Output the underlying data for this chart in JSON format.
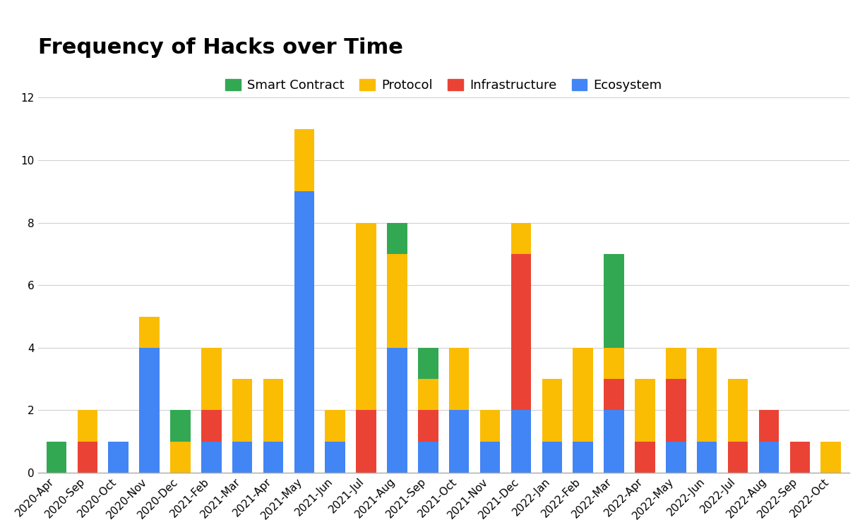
{
  "title": "Frequency of Hacks over Time",
  "categories": [
    "2020-Apr",
    "2020-Sep",
    "2020-Oct",
    "2020-Nov",
    "2020-Dec",
    "2021-Feb",
    "2021-Mar",
    "2021-Apr",
    "2021-May",
    "2021-Jun",
    "2021-Jul",
    "2021-Aug",
    "2021-Sep",
    "2021-Oct",
    "2021-Nov",
    "2021-Dec",
    "2022-Jan",
    "2022-Feb",
    "2022-Mar",
    "2022-Apr",
    "2022-May",
    "2022-Jun",
    "2022-Jul",
    "2022-Aug",
    "2022-Sep",
    "2022-Oct"
  ],
  "smart_contract": [
    1,
    0,
    0,
    0,
    1,
    0,
    0,
    0,
    0,
    0,
    0,
    1,
    1,
    0,
    0,
    0,
    0,
    0,
    3,
    0,
    0,
    0,
    0,
    0,
    0,
    0
  ],
  "protocol": [
    0,
    1,
    0,
    1,
    1,
    2,
    2,
    2,
    2,
    1,
    6,
    3,
    1,
    2,
    1,
    1,
    2,
    3,
    1,
    2,
    1,
    3,
    2,
    0,
    0,
    1
  ],
  "infrastructure": [
    0,
    1,
    0,
    0,
    0,
    1,
    0,
    0,
    0,
    0,
    2,
    0,
    1,
    0,
    0,
    5,
    0,
    0,
    1,
    1,
    2,
    0,
    1,
    1,
    1,
    0
  ],
  "ecosystem": [
    0,
    0,
    1,
    4,
    0,
    1,
    1,
    1,
    9,
    1,
    0,
    4,
    1,
    2,
    1,
    2,
    1,
    1,
    2,
    0,
    1,
    1,
    0,
    1,
    0,
    0
  ],
  "colors": {
    "smart_contract": "#33a853",
    "protocol": "#fbbc04",
    "infrastructure": "#ea4335",
    "ecosystem": "#4285f4"
  },
  "ylim": [
    0,
    12
  ],
  "yticks": [
    0,
    2,
    4,
    6,
    8,
    10,
    12
  ],
  "background_color": "#ffffff",
  "grid_color": "#d0d0d0",
  "title_fontsize": 22,
  "legend_fontsize": 13,
  "tick_fontsize": 11
}
